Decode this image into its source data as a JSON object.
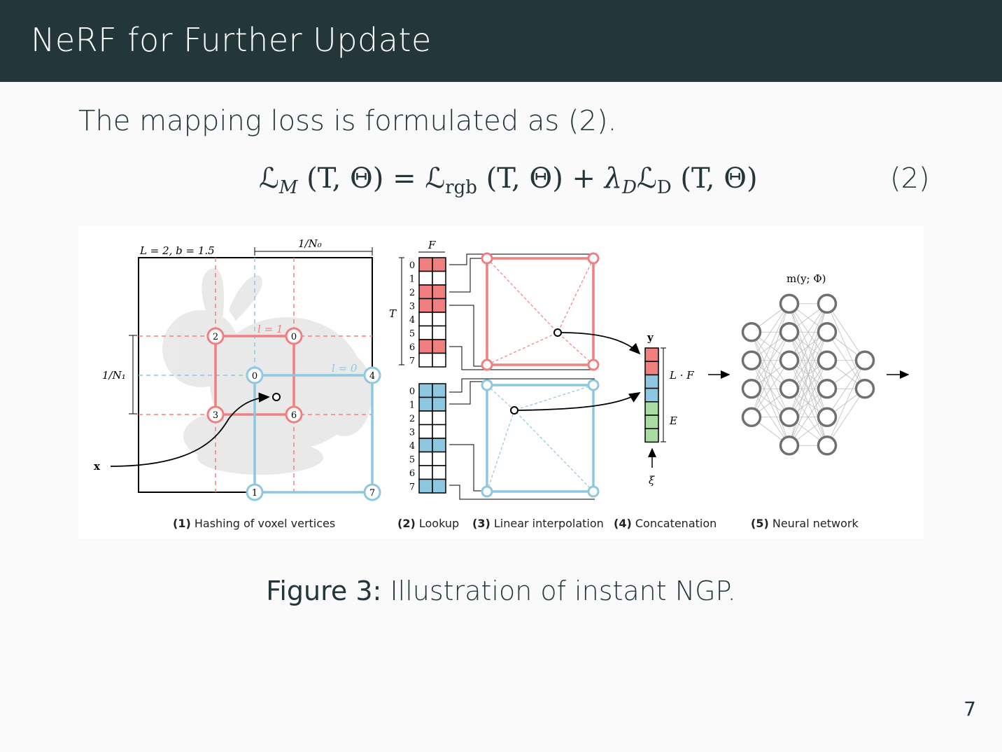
{
  "header": {
    "title": "NeRF for Further Update"
  },
  "body": {
    "intro": "The mapping loss is formulated as (2)."
  },
  "equation": {
    "lhs_symbol": "ℒ",
    "lhs_sub": "M",
    "lhs_args": "(T, Θ) =",
    "rgb_symbol": "ℒ",
    "rgb_sub": "rgb",
    "rgb_args": "(T, Θ) +",
    "lambda": "λ",
    "lambda_sub": "D",
    "d_symbol": "ℒ",
    "d_sub": "D",
    "d_args": "(T, Θ)",
    "number": "(2)"
  },
  "figure": {
    "caption_label": "Figure 3:",
    "caption_text": "Illustration of instant NGP.",
    "colors": {
      "red": "#f08080",
      "blue": "#8ec8e0",
      "green": "#a8dca0",
      "gray": "#707070"
    },
    "labels": {
      "params": "L = 2,  b = 1.5",
      "inv_n0": "1/N₀",
      "inv_n1": "1/N₁",
      "x": "x",
      "level1": "l = 1",
      "level0": "l = 0",
      "F": "F",
      "T": "T",
      "y": "y",
      "LF": "L · F",
      "E": "E",
      "xi": "ξ",
      "m": "m(y; Φ)"
    },
    "red_vertices": [
      "2",
      "0",
      "3",
      "6"
    ],
    "blue_vertices": [
      "0",
      "4",
      "1",
      "7"
    ],
    "table_indices": [
      "0",
      "1",
      "2",
      "3",
      "4",
      "5",
      "6",
      "7"
    ],
    "red_filled_rows": [
      0,
      2,
      3,
      6
    ],
    "blue_filled_rows": [
      0,
      1,
      4,
      7
    ],
    "concat_cells": [
      "red",
      "red",
      "blue",
      "blue",
      "green",
      "green",
      "green"
    ],
    "nn_layers": [
      4,
      6,
      6,
      2
    ],
    "stage_captions": [
      {
        "num": "(1)",
        "text": "Hashing of voxel vertices"
      },
      {
        "num": "(2)",
        "text": "Lookup"
      },
      {
        "num": "(3)",
        "text": "Linear interpolation"
      },
      {
        "num": "(4)",
        "text": "Concatenation"
      },
      {
        "num": "(5)",
        "text": "Neural network"
      }
    ]
  },
  "footer": {
    "page_number": "7"
  }
}
